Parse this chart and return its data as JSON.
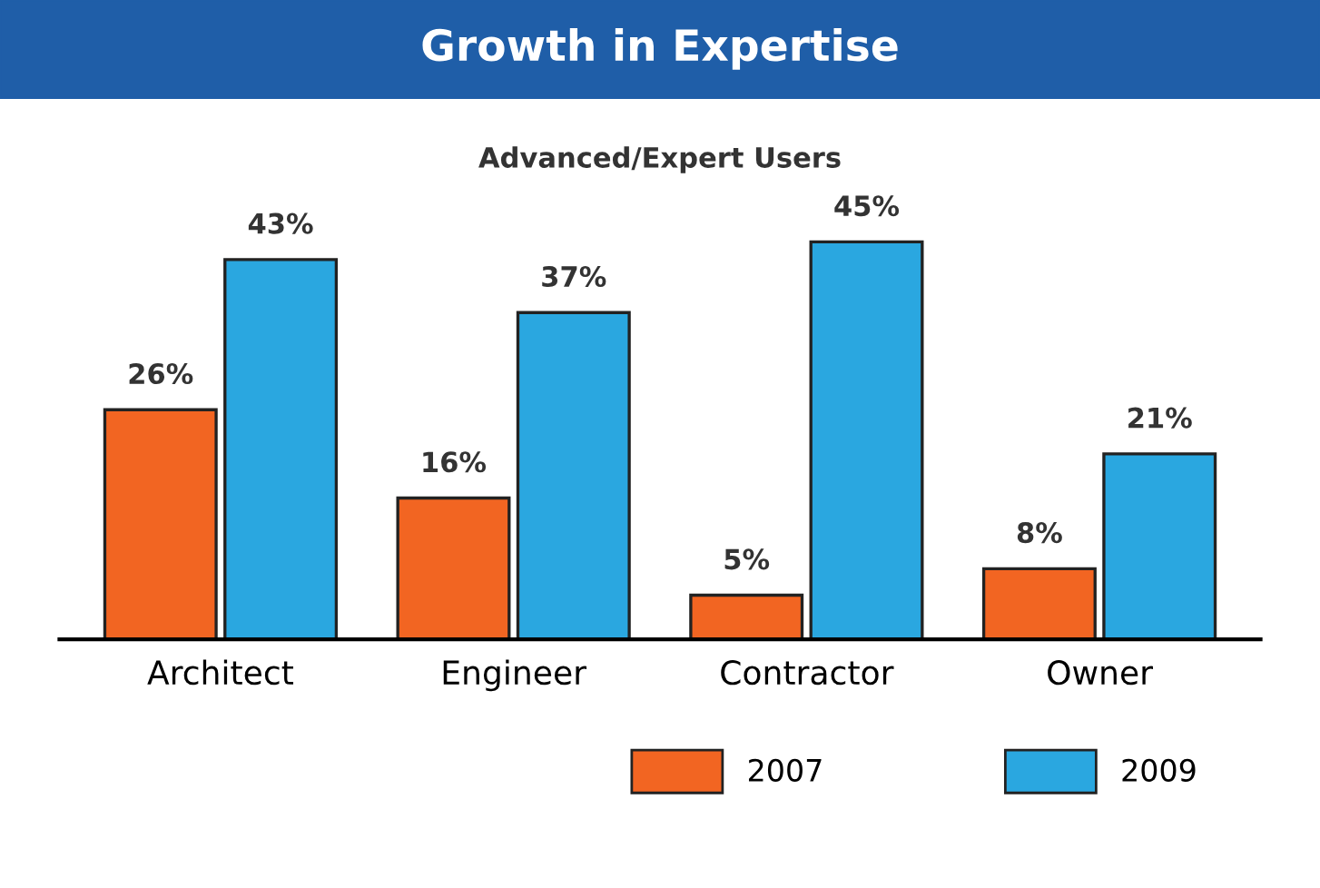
{
  "chart_data": {
    "type": "bar",
    "title": "Growth in Expertise",
    "subtitle": "Advanced/Expert Users",
    "categories": [
      "Architect",
      "Engineer",
      "Contractor",
      "Owner"
    ],
    "series": [
      {
        "name": "2007",
        "color": "#f26522",
        "values": [
          26,
          16,
          5,
          8
        ],
        "value_labels": [
          "26%",
          "16%",
          "5%",
          "8%"
        ]
      },
      {
        "name": "2009",
        "color": "#2aa7e0",
        "values": [
          43,
          37,
          45,
          21
        ],
        "value_labels": [
          "43%",
          "37%",
          "45%",
          "21%"
        ]
      }
    ],
    "legend": "bottom",
    "grid": false
  }
}
